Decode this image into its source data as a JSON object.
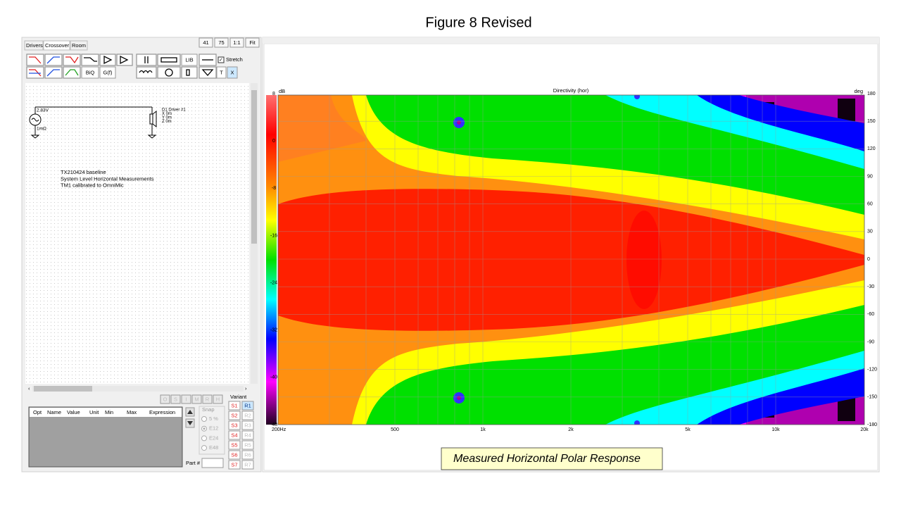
{
  "title": "Figure 8 Revised",
  "left_panel": {
    "tabs": [
      "Drivers",
      "Crossover",
      "Room"
    ],
    "zoom_buttons": [
      "41",
      "75",
      "1:1",
      "Fit"
    ],
    "toolbar_buttons": [
      "BiQ",
      "G(f)",
      "LIB",
      "T",
      "X"
    ],
    "stretch": "Stretch",
    "schematic": {
      "source_voltage": "2.83V",
      "source_resistance": "1mΩ",
      "driver": [
        "D1 Driver #1",
        "X 0m",
        "Y 0m",
        "Z 0m"
      ],
      "notes": [
        "TX210424 baseline",
        "System Level Horizontal Measurements",
        "TM1 calibrated to OmniMic"
      ]
    },
    "mode_buttons": [
      "O",
      "S",
      "I",
      "M",
      "R",
      "H"
    ],
    "table_headers": [
      "Opt",
      "Name",
      "Value",
      "Unit",
      "Min",
      "Max",
      "Expression"
    ],
    "snap": {
      "label": "Snap",
      "options": [
        "5 %",
        "E12",
        "E24",
        "E48"
      ]
    },
    "part_label": "Part #",
    "variant": {
      "label": "Variant",
      "s": [
        "S1",
        "S2",
        "S3",
        "S4",
        "S5",
        "S6",
        "S7"
      ],
      "r": [
        "R1",
        "R2",
        "R3",
        "R4",
        "R5",
        "R6",
        "R7"
      ]
    }
  },
  "plot": {
    "title": "Directivity (hor)",
    "colorbar_unit": "dB",
    "colorbar_ticks": [
      "8",
      "0",
      "-8",
      "-16",
      "-24",
      "-32",
      "-40",
      "-48"
    ],
    "angle_unit": "deg",
    "angle_ticks": [
      "180",
      "150",
      "120",
      "90",
      "60",
      "30",
      "0",
      "-30",
      "-60",
      "-90",
      "-120",
      "-150",
      "-180"
    ],
    "freq_ticks": [
      "200Hz",
      "500",
      "1k",
      "2k",
      "5k",
      "10k",
      "20k"
    ]
  },
  "caption": "Measured Horizontal Polar Response"
}
